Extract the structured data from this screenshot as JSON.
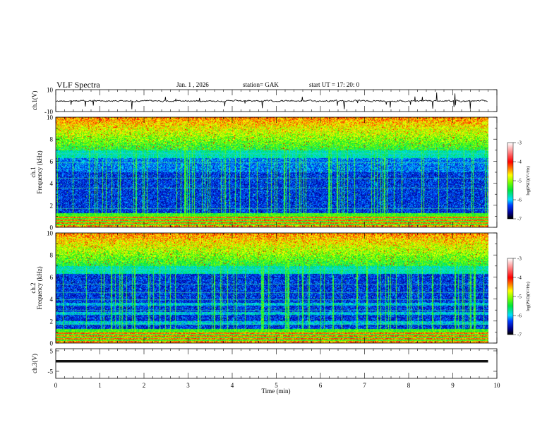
{
  "header": {
    "title": "VLF  Spectra",
    "date": "Jan.  1  , 2026",
    "station": "station= GAK",
    "start_ut": "start  UT  =    17: 20: 0"
  },
  "chart_data": [
    {
      "type": "line",
      "name": "ch1",
      "ylabel": "ch.1(V)",
      "ylim": [
        -10,
        10
      ],
      "yticks": [
        "10",
        "-10"
      ],
      "xlim": [
        0,
        10
      ],
      "baseline": 0,
      "data_end_min": 9.8
    },
    {
      "type": "heatmap",
      "name": "ch1-spectrogram",
      "ylabel": "ch.1\nFrequency  (kHz)",
      "ylabel_lines": [
        "ch.1",
        "Frequency  (kHz)"
      ],
      "ylim": [
        0,
        10
      ],
      "yticks": [
        "0",
        "2",
        "4",
        "6",
        "8",
        "10"
      ],
      "xlim": [
        0,
        10
      ],
      "colorbar": {
        "label": "log(PSD)(V²/Hz)",
        "range": [
          -7,
          -3
        ],
        "ticks": [
          "-3",
          "-4",
          "-5",
          "-6",
          "-7"
        ]
      }
    },
    {
      "type": "heatmap",
      "name": "ch2-spectrogram",
      "ylabel_lines": [
        "ch.2",
        "Frequency  (kHz)"
      ],
      "ylim": [
        0,
        10
      ],
      "yticks": [
        "0",
        "2",
        "4",
        "6",
        "8",
        "10"
      ],
      "xlim": [
        0,
        10
      ],
      "colorbar": {
        "label": "log(PSD)(V²/Hz)",
        "range": [
          -7,
          -3
        ],
        "ticks": [
          "-3",
          "-4",
          "-5",
          "-6",
          "-7"
        ]
      }
    },
    {
      "type": "line",
      "name": "ch3",
      "ylabel": "ch.3(V)",
      "ylim": [
        -5,
        5
      ],
      "yticks": [
        "5",
        "-5"
      ],
      "xlim": [
        0,
        10
      ],
      "baseline": 0,
      "data_end_min": 9.8
    }
  ],
  "xaxis": {
    "label": "Time  (min)",
    "ticks": [
      "0",
      "1",
      "2",
      "3",
      "4",
      "5",
      "6",
      "7",
      "8",
      "9",
      "10"
    ]
  },
  "colors": {
    "trace": "#000000",
    "axis": "#000000"
  }
}
